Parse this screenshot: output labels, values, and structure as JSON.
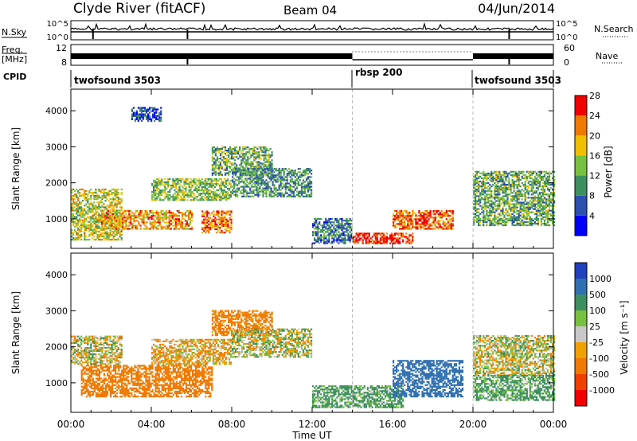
{
  "header": {
    "station": "Clyde River (fitACF)",
    "beam": "Beam 04",
    "date": "04/Jun/2014"
  },
  "nsky_panel": {
    "left_label": "N.Sky",
    "right_label": "N.Search",
    "tick_top": "10^5",
    "tick_bottom": "10^0"
  },
  "freq_panel": {
    "left_label_line1": "Freq.",
    "left_label_line2": "[MHz]",
    "right_label": "Nave",
    "left_ticks": [
      "12",
      "8"
    ],
    "right_ticks": [
      "60",
      "0"
    ]
  },
  "cpid_panel": {
    "label": "CPID",
    "segments": [
      {
        "name": "twofsound 3503",
        "start_h": 0,
        "end_h": 14
      },
      {
        "name": "rbsp 200",
        "start_h": 14,
        "end_h": 20
      },
      {
        "name": "twofsound 3503",
        "start_h": 20,
        "end_h": 24
      }
    ]
  },
  "power_panel": {
    "ylabel": "Slant Range [km]",
    "yticks": [
      "1000",
      "2000",
      "3000",
      "4000"
    ],
    "colorbar_label": "Power [dB]",
    "colorbar_ticks": [
      "4",
      "8",
      "12",
      "16",
      "20",
      "24",
      "28"
    ],
    "colors": [
      "#0000ff",
      "#2d4fb0",
      "#3d8f5f",
      "#78c040",
      "#f0c000",
      "#f07a00",
      "#f00000"
    ]
  },
  "velocity_panel": {
    "ylabel": "Slant Range [km]",
    "yticks": [
      "1000",
      "2000",
      "3000",
      "4000"
    ],
    "colorbar_label": "Velocity  [m s⁻¹]",
    "colorbar_ticks": [
      "1000",
      "500",
      "100",
      "25",
      "-25",
      "-100",
      "-500",
      "-1000"
    ],
    "colors": [
      "#2040c0",
      "#3070b0",
      "#3d8f5f",
      "#78c040",
      "#c8c8c8",
      "#f0a000",
      "#f07a00",
      "#f04000",
      "#f00000"
    ]
  },
  "xaxis": {
    "label": "Time UT",
    "ticks": [
      "00:00",
      "04:00",
      "08:00",
      "12:00",
      "16:00",
      "20:00",
      "00:00"
    ]
  },
  "chart_data": [
    {
      "type": "heatmap",
      "title": "Power",
      "xlabel": "Time UT",
      "ylabel": "Slant Range [km]",
      "xlim_hours": [
        0,
        24
      ],
      "ylim_km": [
        180,
        4600
      ],
      "colorbar": {
        "label": "Power [dB]",
        "ticks": [
          4,
          8,
          12,
          16,
          20,
          24,
          28
        ]
      },
      "regions": [
        {
          "t": [
            0,
            2.5
          ],
          "r": [
            400,
            1800
          ],
          "power_db": 18
        },
        {
          "t": [
            1.5,
            6
          ],
          "r": [
            700,
            1200
          ],
          "power_db": 22
        },
        {
          "t": [
            4,
            8
          ],
          "r": [
            1500,
            2100
          ],
          "power_db": 16
        },
        {
          "t": [
            7,
            10
          ],
          "r": [
            2200,
            3000
          ],
          "power_db": 14
        },
        {
          "t": [
            6.5,
            8
          ],
          "r": [
            600,
            1200
          ],
          "power_db": 24
        },
        {
          "t": [
            8,
            12
          ],
          "r": [
            1600,
            2400
          ],
          "power_db": 12
        },
        {
          "t": [
            12,
            14
          ],
          "r": [
            300,
            1000
          ],
          "power_db": 10
        },
        {
          "t": [
            14,
            17
          ],
          "r": [
            300,
            600
          ],
          "power_db": 28
        },
        {
          "t": [
            16,
            19
          ],
          "r": [
            700,
            1200
          ],
          "power_db": 26
        },
        {
          "t": [
            20,
            24
          ],
          "r": [
            800,
            2300
          ],
          "power_db": 14
        },
        {
          "t": [
            3,
            4.5
          ],
          "r": [
            3700,
            4100
          ],
          "power_db": 8
        }
      ]
    },
    {
      "type": "heatmap",
      "title": "Velocity",
      "xlabel": "Time UT",
      "ylabel": "Slant Range [km]",
      "xlim_hours": [
        0,
        24
      ],
      "ylim_km": [
        180,
        4600
      ],
      "colorbar": {
        "label": "Velocity [m s-1]",
        "ticks": [
          1000,
          500,
          100,
          25,
          -25,
          -100,
          -500,
          -1000
        ]
      },
      "regions": [
        {
          "t": [
            0,
            2.5
          ],
          "r": [
            1500,
            2300
          ],
          "velocity": 0
        },
        {
          "t": [
            0.5,
            7
          ],
          "r": [
            600,
            1500
          ],
          "velocity": -300
        },
        {
          "t": [
            4,
            8
          ],
          "r": [
            1500,
            2200
          ],
          "velocity": -80
        },
        {
          "t": [
            7,
            10
          ],
          "r": [
            2300,
            3000
          ],
          "velocity": -200
        },
        {
          "t": [
            8,
            12
          ],
          "r": [
            1700,
            2500
          ],
          "velocity": 20
        },
        {
          "t": [
            12,
            16.5
          ],
          "r": [
            300,
            900
          ],
          "velocity": 150
        },
        {
          "t": [
            16,
            19.5
          ],
          "r": [
            600,
            1600
          ],
          "velocity": 700
        },
        {
          "t": [
            20,
            24
          ],
          "r": [
            1200,
            2300
          ],
          "velocity": 0
        },
        {
          "t": [
            20,
            24
          ],
          "r": [
            500,
            1200
          ],
          "velocity": 150
        }
      ]
    }
  ]
}
